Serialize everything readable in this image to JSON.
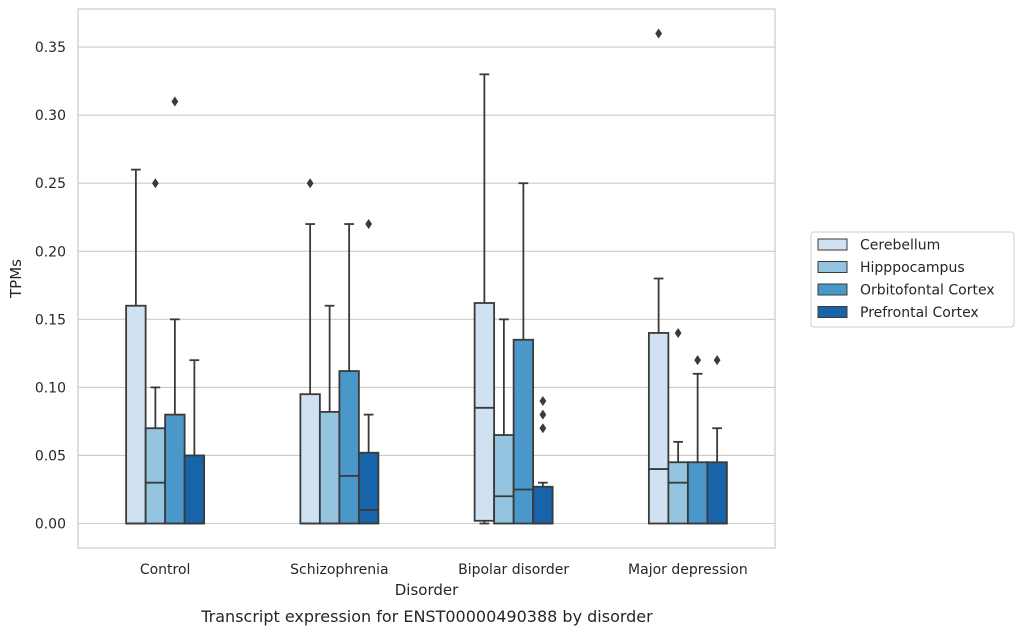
{
  "chart_data": {
    "type": "box",
    "title": "",
    "caption": "Transcript expression for ENST00000490388 by disorder",
    "xlabel": "Disorder",
    "ylabel": "TPMs",
    "ylim": [
      -0.018,
      0.378
    ],
    "yticks": [
      0.0,
      0.05,
      0.1,
      0.15,
      0.2,
      0.25,
      0.3,
      0.35
    ],
    "ytick_labels": [
      "0.00",
      "0.05",
      "0.10",
      "0.15",
      "0.20",
      "0.25",
      "0.30",
      "0.35"
    ],
    "grid": true,
    "legend_position": "right",
    "categories": [
      "Control",
      "Schizophrenia",
      "Bipolar disorder",
      "Major depression"
    ],
    "series": [
      {
        "name": "Cerebellum",
        "color": "#d0e1f2",
        "boxes": [
          {
            "q1": 0.0,
            "median": 0.0,
            "q3": 0.16,
            "whisker_low": 0.0,
            "whisker_high": 0.26,
            "outliers": []
          },
          {
            "q1": 0.0,
            "median": 0.0,
            "q3": 0.095,
            "whisker_low": 0.0,
            "whisker_high": 0.22,
            "outliers": [
              0.25
            ]
          },
          {
            "q1": 0.002,
            "median": 0.085,
            "q3": 0.162,
            "whisker_low": 0.0,
            "whisker_high": 0.33,
            "outliers": []
          },
          {
            "q1": 0.0,
            "median": 0.04,
            "q3": 0.14,
            "whisker_low": 0.0,
            "whisker_high": 0.18,
            "outliers": [
              0.36
            ]
          }
        ]
      },
      {
        "name": "Hipppocampus",
        "color": "#94c4df",
        "boxes": [
          {
            "q1": 0.0,
            "median": 0.03,
            "q3": 0.07,
            "whisker_low": 0.0,
            "whisker_high": 0.1,
            "outliers": [
              0.25
            ]
          },
          {
            "q1": 0.0,
            "median": 0.0,
            "q3": 0.082,
            "whisker_low": 0.0,
            "whisker_high": 0.16,
            "outliers": []
          },
          {
            "q1": 0.0,
            "median": 0.02,
            "q3": 0.065,
            "whisker_low": 0.0,
            "whisker_high": 0.15,
            "outliers": []
          },
          {
            "q1": 0.0,
            "median": 0.03,
            "q3": 0.045,
            "whisker_low": 0.0,
            "whisker_high": 0.06,
            "outliers": [
              0.14
            ]
          }
        ]
      },
      {
        "name": "Orbitofontal Cortex",
        "color": "#4a98c9",
        "boxes": [
          {
            "q1": 0.0,
            "median": 0.0,
            "q3": 0.08,
            "whisker_low": 0.0,
            "whisker_high": 0.15,
            "outliers": [
              0.31
            ]
          },
          {
            "q1": 0.0,
            "median": 0.035,
            "q3": 0.112,
            "whisker_low": 0.0,
            "whisker_high": 0.22,
            "outliers": []
          },
          {
            "q1": 0.0,
            "median": 0.025,
            "q3": 0.135,
            "whisker_low": 0.0,
            "whisker_high": 0.25,
            "outliers": []
          },
          {
            "q1": 0.0,
            "median": 0.0,
            "q3": 0.045,
            "whisker_low": 0.0,
            "whisker_high": 0.11,
            "outliers": [
              0.12
            ]
          }
        ]
      },
      {
        "name": "Prefrontal Cortex",
        "color": "#1764ab",
        "boxes": [
          {
            "q1": 0.0,
            "median": 0.0,
            "q3": 0.05,
            "whisker_low": 0.0,
            "whisker_high": 0.12,
            "outliers": []
          },
          {
            "q1": 0.0,
            "median": 0.01,
            "q3": 0.052,
            "whisker_low": 0.0,
            "whisker_high": 0.08,
            "outliers": [
              0.22
            ]
          },
          {
            "q1": 0.0,
            "median": 0.0,
            "q3": 0.027,
            "whisker_low": 0.0,
            "whisker_high": 0.03,
            "outliers": [
              0.07,
              0.08,
              0.09
            ]
          },
          {
            "q1": 0.0,
            "median": 0.0,
            "q3": 0.045,
            "whisker_low": 0.0,
            "whisker_high": 0.07,
            "outliers": [
              0.12
            ]
          }
        ]
      }
    ]
  }
}
